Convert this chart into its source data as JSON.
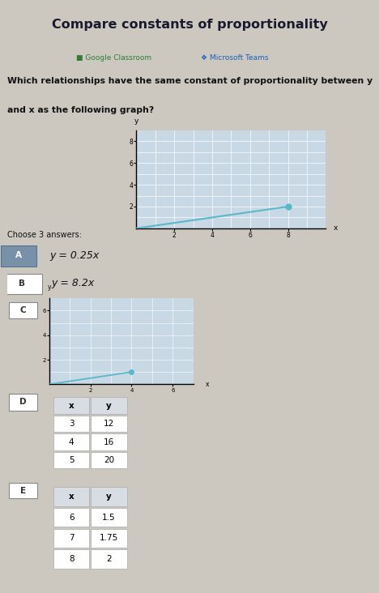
{
  "title": "Compare constants of proportionality",
  "subtitle_gc": "Google Classroom",
  "subtitle_mt": "Microsoft Teams",
  "question_line1": "Which relationships have the same constant of proportionality between y",
  "question_line2": "and x as the following graph?",
  "choose_text": "Choose 3 answers:",
  "bg_color": "#ccc8c0",
  "white_panel": "#f0ede8",
  "option_a_text": "y = 0.25x",
  "option_b_text": "y = 8.2x",
  "option_a_bg": "#b0b8c8",
  "option_a_bar_color": "#8090a8",
  "main_graph": {
    "xlim": [
      0,
      10
    ],
    "ylim": [
      0,
      9
    ],
    "line_x": [
      0,
      8
    ],
    "line_y": [
      0,
      2
    ],
    "dot_x": 8,
    "dot_y": 2,
    "color": "#5ab8cc",
    "xticks": [
      2,
      4,
      6,
      8
    ],
    "yticks": [
      2,
      4,
      6,
      8
    ],
    "grid_color": "#c0ccd8",
    "bg_color": "#c8d8e4"
  },
  "small_graph": {
    "xlim": [
      0,
      7
    ],
    "ylim": [
      0,
      7
    ],
    "line_x": [
      0,
      4
    ],
    "line_y": [
      0,
      1
    ],
    "dot_x": 4,
    "dot_y": 1,
    "color": "#5ab8cc",
    "xticks": [
      2,
      4,
      6
    ],
    "yticks": [
      2,
      4,
      6
    ],
    "grid_color": "#c0ccd8",
    "bg_color": "#c8d8e4"
  },
  "table_d": {
    "headers": [
      "x",
      "y"
    ],
    "rows": [
      [
        "3",
        "12"
      ],
      [
        "4",
        "16"
      ],
      [
        "5",
        "20"
      ]
    ]
  },
  "table_e": {
    "headers": [
      "x",
      "y"
    ],
    "rows": [
      [
        "6",
        "1.5"
      ],
      [
        "7",
        "1.75"
      ],
      [
        "8",
        "2"
      ]
    ]
  }
}
